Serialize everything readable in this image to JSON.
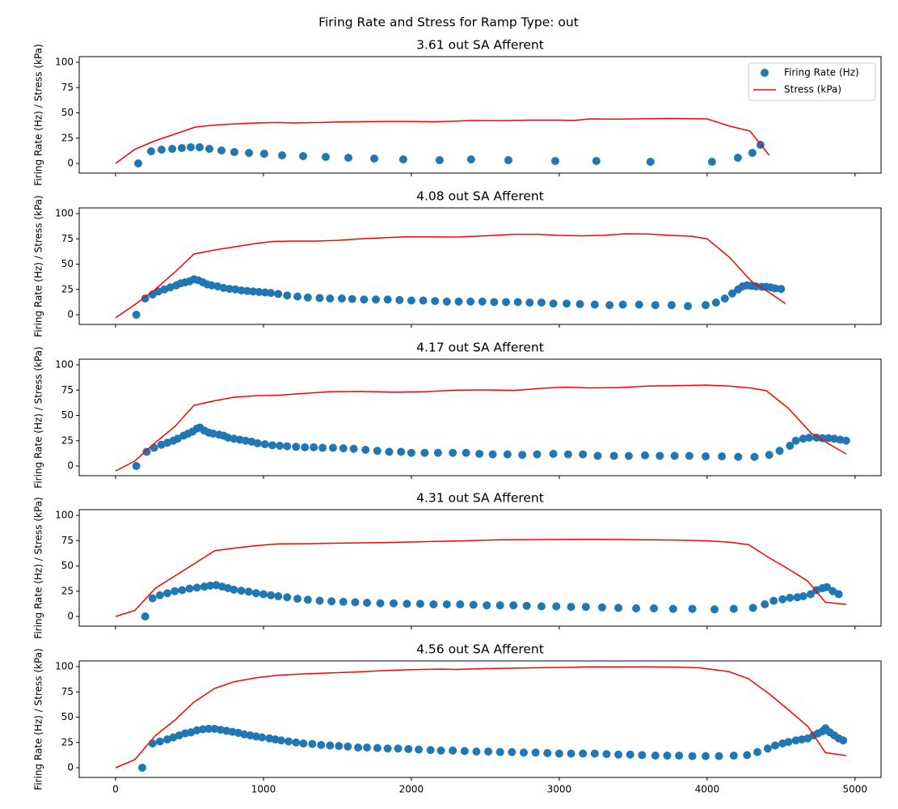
{
  "title": "Firing Rate and Stress for Ramp Type: out",
  "chart_data": [
    {
      "type": "line",
      "title": "3.61 out SA Afferent",
      "ylabel": "Firing Rate (Hz) / Stress (kPa)",
      "xlim": [
        -246,
        5176
      ],
      "ylim": [
        -9.6,
        105.6
      ],
      "yticks": [
        0,
        25,
        50,
        75,
        100
      ],
      "legend": "upper right",
      "series": [
        {
          "name": "Firing Rate (Hz)",
          "style": "scatter",
          "color": "#1f77b4",
          "x": [
            153,
            240,
            311,
            383,
            448,
            508,
            568,
            634,
            716,
            803,
            902,
            1005,
            1126,
            1268,
            1421,
            1574,
            1749,
            1945,
            2191,
            2404,
            2656,
            2973,
            3251,
            3617,
            4033,
            4208,
            4306,
            4361
          ],
          "values": [
            0,
            12,
            13.6,
            14.4,
            15.2,
            16,
            16,
            14.4,
            12.8,
            11.2,
            10.4,
            9.6,
            8,
            7.2,
            6.4,
            5.6,
            4.8,
            4,
            3.2,
            4,
            3.2,
            2.4,
            2.4,
            1.6,
            1.6,
            5.6,
            10.4,
            18.4
          ]
        },
        {
          "name": "Stress (kPa)",
          "style": "line",
          "color": "#ff0000",
          "x": [
            0,
            130,
            260,
            400,
            540,
            670,
            800,
            950,
            1100,
            1200,
            1400,
            1500,
            1800,
            2000,
            2150,
            2300,
            2400,
            2600,
            2800,
            3000,
            3100,
            3200,
            3400,
            3600,
            3750,
            3900,
            4000,
            4150,
            4290,
            4420
          ],
          "values": [
            0,
            14,
            22,
            29,
            36,
            38,
            39,
            40,
            40.5,
            40,
            40.5,
            41,
            41.5,
            41.5,
            41.2,
            41.8,
            42.5,
            42.3,
            42.8,
            42.8,
            42.5,
            44,
            43.8,
            44.2,
            44.5,
            44.2,
            44,
            37,
            32,
            8
          ]
        }
      ]
    },
    {
      "type": "line",
      "title": "4.08 out SA Afferent",
      "ylabel": "Firing Rate (Hz) / Stress (kPa)",
      "xlim": [
        -246,
        5176
      ],
      "ylim": [
        -9.6,
        105.6
      ],
      "yticks": [
        0,
        25,
        50,
        75,
        100
      ],
      "series": [
        {
          "name": "Firing Rate (Hz)",
          "style": "scatter",
          "color": "#1f77b4",
          "x": [
            140,
            200,
            250,
            290,
            330,
            370,
            410,
            440,
            470,
            500,
            530,
            560,
            590,
            620,
            650,
            690,
            730,
            770,
            810,
            850,
            890,
            930,
            970,
            1010,
            1050,
            1100,
            1160,
            1230,
            1300,
            1380,
            1450,
            1530,
            1600,
            1680,
            1760,
            1840,
            1920,
            2000,
            2080,
            2160,
            2240,
            2320,
            2400,
            2480,
            2560,
            2640,
            2720,
            2800,
            2880,
            2960,
            3050,
            3140,
            3240,
            3340,
            3430,
            3540,
            3650,
            3760,
            3870,
            3990,
            4060,
            4120,
            4170,
            4210,
            4240,
            4270,
            4300,
            4330,
            4370,
            4400,
            4430,
            4460,
            4500
          ],
          "values": [
            0,
            16,
            20,
            23,
            25,
            27,
            29,
            31,
            32,
            33,
            35,
            34,
            32,
            30,
            29,
            28,
            26.5,
            25.5,
            25,
            24,
            23.5,
            23,
            22.5,
            22,
            21.5,
            20.5,
            19,
            18,
            17,
            16.5,
            16,
            16,
            15.5,
            15,
            15,
            15,
            14.5,
            14,
            14,
            13.5,
            13,
            13,
            13,
            13,
            12.5,
            12.5,
            12.5,
            12,
            12,
            11,
            11,
            10.5,
            10,
            9.5,
            10,
            10,
            9.5,
            9.5,
            8.5,
            9.5,
            12,
            16,
            21,
            25,
            28,
            29,
            28.5,
            28,
            27.5,
            27.5,
            27,
            26,
            25.5
          ]
        },
        {
          "name": "Stress (kPa)",
          "style": "line",
          "color": "#ff0000",
          "x": [
            0,
            130,
            260,
            400,
            530,
            670,
            800,
            950,
            1070,
            1200,
            1350,
            1500,
            1650,
            1800,
            1950,
            2100,
            2300,
            2500,
            2700,
            2850,
            3000,
            3150,
            3300,
            3450,
            3600,
            3750,
            3900,
            4000,
            4150,
            4300,
            4430,
            4530
          ],
          "values": [
            -3,
            10,
            24,
            42,
            60,
            64,
            67,
            70.5,
            72.5,
            72.8,
            72.8,
            73.5,
            75,
            76,
            77,
            77,
            76.8,
            78,
            79.5,
            79.5,
            78.5,
            78,
            78.5,
            80,
            79.8,
            78.5,
            77.5,
            75,
            57,
            33,
            21,
            11
          ]
        }
      ]
    },
    {
      "type": "line",
      "title": "4.17 out SA Afferent",
      "ylabel": "Firing Rate (Hz) / Stress (kPa)",
      "xlim": [
        -246,
        5176
      ],
      "ylim": [
        -9.6,
        105.6
      ],
      "yticks": [
        0,
        25,
        50,
        75,
        100
      ],
      "series": [
        {
          "name": "Firing Rate (Hz)",
          "style": "scatter",
          "color": "#1f77b4",
          "x": [
            140,
            210,
            260,
            310,
            350,
            390,
            420,
            460,
            490,
            520,
            550,
            570,
            600,
            630,
            660,
            700,
            730,
            760,
            800,
            840,
            880,
            920,
            960,
            1010,
            1060,
            1110,
            1160,
            1220,
            1280,
            1340,
            1400,
            1470,
            1540,
            1610,
            1690,
            1770,
            1850,
            1930,
            2000,
            2090,
            2180,
            2280,
            2370,
            2460,
            2550,
            2650,
            2750,
            2850,
            2960,
            3060,
            3160,
            3260,
            3370,
            3470,
            3580,
            3680,
            3780,
            3880,
            3990,
            4100,
            4210,
            4320,
            4420,
            4490,
            4560,
            4600,
            4650,
            4690,
            4740,
            4780,
            4820,
            4860,
            4900,
            4940
          ],
          "values": [
            0,
            14,
            18,
            21,
            23,
            25,
            27,
            30,
            32,
            34,
            37,
            38,
            35,
            33,
            32,
            31,
            30,
            28,
            27,
            26,
            25,
            24,
            22.5,
            21.5,
            20.5,
            20,
            19.5,
            19,
            18.5,
            18.5,
            18,
            18,
            17.5,
            17,
            16,
            15,
            14,
            14,
            13,
            13,
            13,
            13,
            13,
            12,
            11.5,
            11.5,
            11,
            11.5,
            12,
            11.5,
            11.5,
            10,
            10,
            10,
            10.5,
            10,
            10,
            10,
            9.5,
            9.5,
            9,
            9,
            11,
            15,
            20,
            25,
            27,
            28,
            28,
            27.5,
            27.5,
            27,
            26,
            25
          ]
        },
        {
          "name": "Stress (kPa)",
          "style": "line",
          "color": "#ff0000",
          "x": [
            0,
            130,
            260,
            400,
            530,
            670,
            800,
            950,
            1100,
            1300,
            1450,
            1650,
            1900,
            2100,
            2300,
            2500,
            2700,
            2900,
            3050,
            3200,
            3400,
            3600,
            3800,
            4000,
            4150,
            4300,
            4400,
            4550,
            4700,
            4820,
            4940
          ],
          "values": [
            -5,
            5,
            22,
            39,
            60,
            64.5,
            68,
            69.5,
            70,
            72,
            73.5,
            73.8,
            73,
            73.5,
            75,
            75.2,
            74.8,
            77,
            78,
            77.2,
            77.5,
            79,
            79.5,
            80,
            79,
            77,
            74.5,
            57,
            33,
            22,
            12
          ]
        }
      ]
    },
    {
      "type": "line",
      "title": "4.31 out SA Afferent",
      "ylabel": "Firing Rate (Hz) / Stress (kPa)",
      "xlim": [
        -246,
        5176
      ],
      "ylim": [
        -9.6,
        105.6
      ],
      "yticks": [
        0,
        25,
        50,
        75,
        100
      ],
      "series": [
        {
          "name": "Firing Rate (Hz)",
          "style": "scatter",
          "color": "#1f77b4",
          "x": [
            200,
            250,
            300,
            350,
            400,
            450,
            500,
            550,
            600,
            640,
            680,
            720,
            760,
            800,
            850,
            900,
            950,
            1000,
            1050,
            1100,
            1160,
            1230,
            1300,
            1380,
            1460,
            1540,
            1620,
            1700,
            1790,
            1880,
            1970,
            2060,
            2150,
            2240,
            2330,
            2420,
            2510,
            2600,
            2690,
            2780,
            2880,
            2980,
            3080,
            3180,
            3290,
            3400,
            3520,
            3640,
            3770,
            3900,
            4050,
            4180,
            4310,
            4390,
            4450,
            4510,
            4560,
            4610,
            4650,
            4700,
            4740,
            4780,
            4810,
            4850,
            4890
          ],
          "values": [
            0,
            18,
            21,
            23,
            25,
            26,
            27.5,
            28.5,
            29.5,
            30.5,
            31,
            29.5,
            28,
            26.5,
            25.5,
            24.5,
            23,
            22,
            21,
            20,
            19,
            17.5,
            16.5,
            15.5,
            15,
            14.5,
            14,
            13.5,
            13,
            13,
            12.5,
            12.5,
            12,
            12,
            12,
            11.5,
            11,
            11,
            11,
            10.5,
            10,
            10,
            9.5,
            9.5,
            9,
            8.5,
            8,
            8,
            7.5,
            7.5,
            7,
            7.5,
            8.5,
            12,
            15.5,
            17,
            18.5,
            19,
            20,
            22,
            26,
            28,
            29,
            25,
            22
          ]
        },
        {
          "name": "Stress (kPa)",
          "style": "line",
          "color": "#ff0000",
          "x": [
            0,
            130,
            270,
            400,
            530,
            670,
            800,
            950,
            1100,
            1300,
            1500,
            1800,
            2100,
            2400,
            2600,
            2900,
            3200,
            3450,
            3600,
            3800,
            4000,
            4150,
            4280,
            4420,
            4560,
            4680,
            4800,
            4940
          ],
          "values": [
            0,
            6,
            28,
            40,
            52,
            65,
            67.5,
            70,
            71.8,
            72,
            72.5,
            73,
            74,
            75,
            75.8,
            76,
            76.3,
            76,
            75.8,
            75.5,
            74.8,
            73.5,
            71,
            58,
            46,
            35,
            14,
            12
          ]
        }
      ]
    },
    {
      "type": "line",
      "title": "4.56 out SA Afferent",
      "ylabel": "Firing Rate (Hz) / Stress (kPa)",
      "xlim": [
        -246,
        5176
      ],
      "ylim": [
        -9.6,
        105.6
      ],
      "xticks": [
        0,
        1000,
        2000,
        3000,
        4000,
        5000
      ],
      "yticks": [
        0,
        25,
        50,
        75,
        100
      ],
      "series": [
        {
          "name": "Firing Rate (Hz)",
          "style": "scatter",
          "color": "#1f77b4",
          "x": [
            180,
            250,
            300,
            350,
            390,
            430,
            470,
            510,
            550,
            590,
            630,
            670,
            710,
            750,
            790,
            830,
            870,
            910,
            950,
            990,
            1040,
            1080,
            1120,
            1170,
            1220,
            1270,
            1330,
            1390,
            1450,
            1510,
            1570,
            1640,
            1700,
            1770,
            1840,
            1910,
            1980,
            2050,
            2130,
            2200,
            2280,
            2360,
            2440,
            2520,
            2600,
            2680,
            2760,
            2840,
            2920,
            3000,
            3080,
            3160,
            3240,
            3320,
            3400,
            3480,
            3560,
            3650,
            3730,
            3810,
            3900,
            3990,
            4080,
            4180,
            4270,
            4340,
            4410,
            4460,
            4510,
            4550,
            4600,
            4640,
            4680,
            4720,
            4750,
            4780,
            4800,
            4830,
            4860,
            4890,
            4920
          ],
          "values": [
            0,
            24,
            26,
            28,
            30,
            32,
            34,
            35,
            37,
            38,
            38.5,
            38.5,
            37.5,
            36.5,
            35.5,
            34.5,
            33,
            32,
            31,
            30,
            29,
            28,
            27,
            26,
            25,
            24,
            23.5,
            22.5,
            22,
            21.5,
            21,
            20,
            20,
            19.5,
            19,
            19,
            18.5,
            18,
            17.5,
            17,
            17,
            16.5,
            16,
            16,
            15.5,
            15.5,
            15,
            15,
            14.5,
            14,
            14,
            14,
            14,
            13.5,
            13,
            13,
            12.5,
            12,
            12,
            12,
            11.5,
            11.5,
            11.5,
            12,
            12.5,
            15.5,
            19,
            22,
            24,
            25.5,
            27,
            28,
            29,
            32,
            34,
            36,
            39,
            35,
            32,
            29,
            27
          ]
        },
        {
          "name": "Stress (kPa)",
          "style": "line",
          "color": "#ff0000",
          "x": [
            0,
            130,
            270,
            400,
            530,
            670,
            800,
            950,
            1100,
            1300,
            1600,
            1800,
            2000,
            2200,
            2300,
            2500,
            2700,
            2900,
            3050,
            3200,
            3400,
            3600,
            3800,
            3950,
            4150,
            4280,
            4420,
            4560,
            4680,
            4800,
            4940
          ],
          "values": [
            0,
            8,
            32,
            47,
            65,
            78.5,
            85,
            89,
            91.5,
            93,
            94.5,
            96,
            97,
            97.5,
            97.2,
            98,
            98.5,
            99,
            99.2,
            99.8,
            99.7,
            99.8,
            99.5,
            98.8,
            95,
            88,
            73,
            56,
            41,
            15,
            12
          ]
        }
      ]
    }
  ]
}
